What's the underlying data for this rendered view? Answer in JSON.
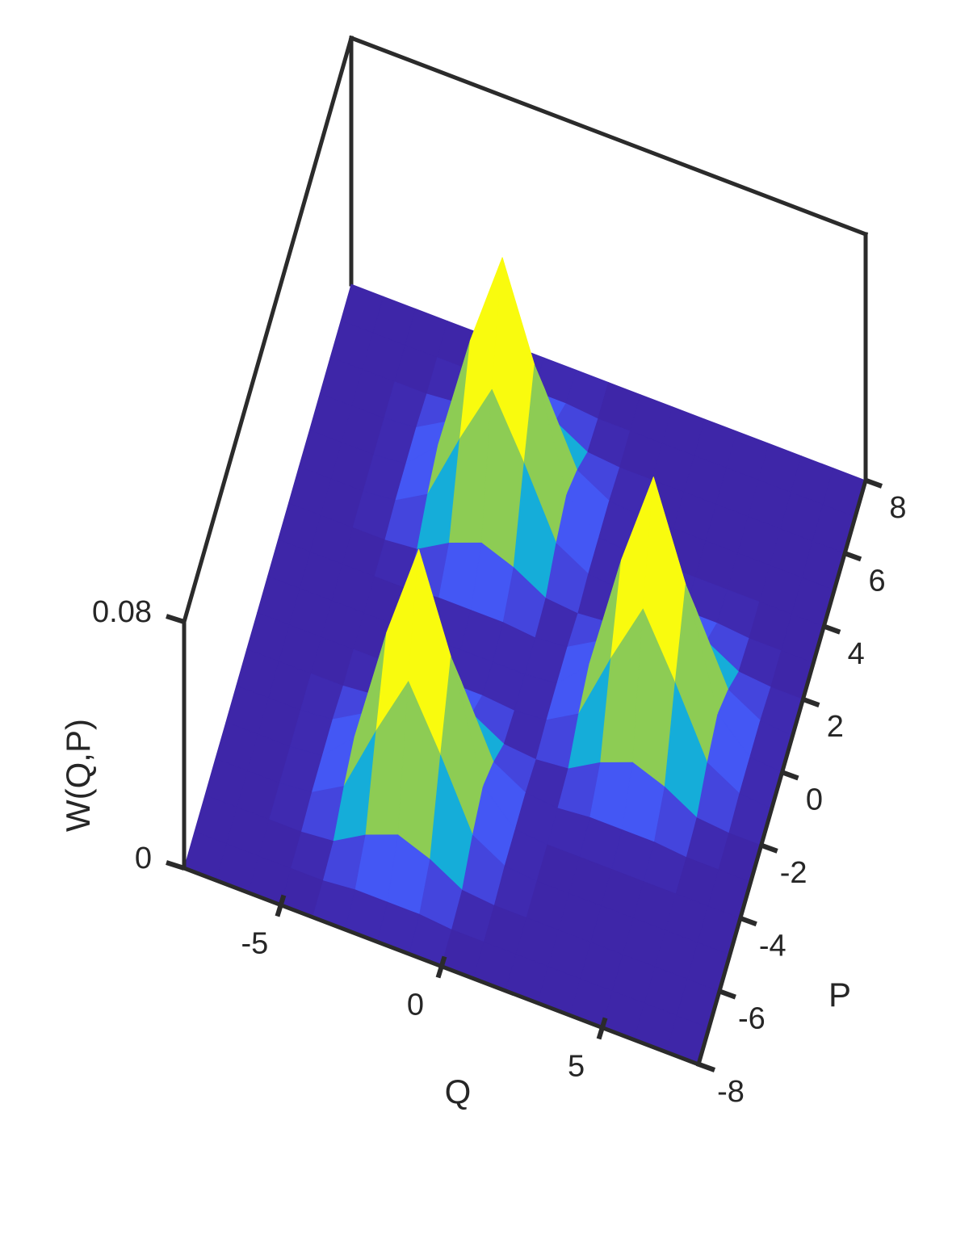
{
  "chart_data": {
    "type": "surface3d",
    "xlabel": "Q",
    "ylabel": "P",
    "zlabel": "W(Q,P)",
    "xlim": [
      -8,
      8
    ],
    "ylim": [
      -8,
      8
    ],
    "zlim": [
      0,
      0.08
    ],
    "xticks": [
      -5,
      0,
      5
    ],
    "yticks": [
      -8,
      -6,
      -4,
      -2,
      0,
      2,
      4,
      6,
      8
    ],
    "zticks": [
      0,
      0.08
    ],
    "colormap": "parula",
    "frame_color": "#2b2b2b",
    "x": [
      -8,
      -7,
      -6,
      -5,
      -4,
      -3,
      -2,
      -1,
      0,
      1,
      2,
      3,
      4,
      5,
      6,
      7,
      8
    ],
    "y": [
      -8,
      -7,
      -6,
      -5,
      -4,
      -3,
      -2,
      -1,
      0,
      1,
      2,
      3,
      4,
      5,
      6,
      7,
      8
    ],
    "z": [
      [
        0,
        0,
        0,
        0,
        0,
        0,
        0,
        0,
        0,
        0,
        0,
        0,
        0,
        0,
        0,
        0,
        0
      ],
      [
        0,
        0,
        0,
        0,
        0,
        0.001,
        0.001,
        0.001,
        0,
        0,
        0,
        0,
        0,
        0,
        0,
        0,
        0
      ],
      [
        0,
        0,
        0,
        0,
        0.001,
        0.007,
        0.011,
        0.007,
        0.001,
        0,
        0,
        0,
        0,
        0,
        0,
        0,
        0
      ],
      [
        0,
        0,
        0,
        0.001,
        0.007,
        0.029,
        0.049,
        0.029,
        0.007,
        0.001,
        0,
        0,
        0,
        0,
        0,
        0,
        0
      ],
      [
        0,
        0,
        0,
        0.001,
        0.011,
        0.049,
        0.08,
        0.049,
        0.011,
        0.001,
        0,
        0,
        0,
        0,
        0,
        0,
        0
      ],
      [
        0,
        0,
        0,
        0.001,
        0.007,
        0.029,
        0.049,
        0.029,
        0.007,
        0.001,
        0,
        0.001,
        0.001,
        0.001,
        0,
        0,
        0
      ],
      [
        0,
        0,
        0,
        0,
        0.001,
        0.007,
        0.011,
        0.007,
        0.001,
        0,
        0.001,
        0.007,
        0.011,
        0.007,
        0.001,
        0,
        0
      ],
      [
        0,
        0,
        0,
        0,
        0,
        0.001,
        0.001,
        0.001,
        0,
        0.001,
        0.007,
        0.029,
        0.049,
        0.029,
        0.007,
        0.001,
        0
      ],
      [
        0,
        0,
        0,
        0,
        0,
        0,
        0,
        0,
        0,
        0.001,
        0.011,
        0.049,
        0.08,
        0.049,
        0.011,
        0.001,
        0
      ],
      [
        0,
        0,
        0,
        0,
        0,
        0.001,
        0.001,
        0.001,
        0,
        0.001,
        0.007,
        0.029,
        0.049,
        0.029,
        0.007,
        0.001,
        0
      ],
      [
        0,
        0,
        0,
        0,
        0.001,
        0.007,
        0.011,
        0.007,
        0.001,
        0,
        0.001,
        0.007,
        0.011,
        0.007,
        0.001,
        0,
        0
      ],
      [
        0,
        0,
        0,
        0.001,
        0.007,
        0.029,
        0.049,
        0.029,
        0.007,
        0.001,
        0,
        0.001,
        0.001,
        0.001,
        0,
        0,
        0
      ],
      [
        0,
        0,
        0,
        0.001,
        0.011,
        0.049,
        0.08,
        0.049,
        0.011,
        0.001,
        0,
        0,
        0,
        0,
        0,
        0,
        0
      ],
      [
        0,
        0,
        0,
        0.001,
        0.007,
        0.029,
        0.049,
        0.029,
        0.007,
        0.001,
        0,
        0,
        0,
        0,
        0,
        0,
        0
      ],
      [
        0,
        0,
        0,
        0,
        0.001,
        0.007,
        0.011,
        0.007,
        0.001,
        0,
        0,
        0,
        0,
        0,
        0,
        0,
        0
      ],
      [
        0,
        0,
        0,
        0,
        0,
        0.001,
        0.001,
        0.001,
        0,
        0,
        0,
        0,
        0,
        0,
        0,
        0,
        0
      ],
      [
        0,
        0,
        0,
        0,
        0,
        0,
        0,
        0,
        0,
        0,
        0,
        0,
        0,
        0,
        0,
        0,
        0
      ]
    ]
  }
}
